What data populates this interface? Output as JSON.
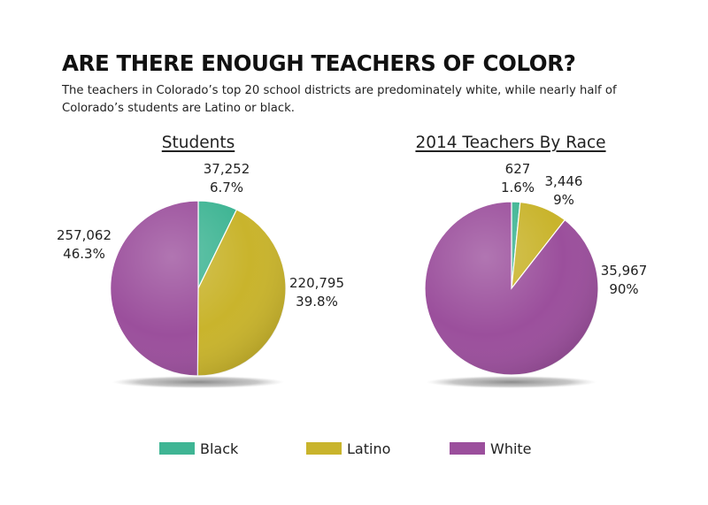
{
  "title": "ARE THERE ENOUGH TEACHERS OF COLOR?",
  "subtitle": "The teachers in Colorado’s top 20 school districts are predominately white, while nearly half of Colorado’s students are Latino or black.",
  "colors": {
    "Black": "#3fb594",
    "Latino": "#c9b42c",
    "White": "#9b4f9c"
  },
  "legend": [
    "Black",
    "Latino",
    "White"
  ],
  "chart_data": [
    {
      "type": "pie",
      "title": "Students",
      "slices": [
        {
          "category": "Black",
          "count": "37,252",
          "percent": "6.7%",
          "value": 6.7
        },
        {
          "category": "Latino",
          "count": "220,795",
          "percent": "39.8%",
          "value": 39.8
        },
        {
          "category": "White",
          "count": "257,062",
          "percent": "46.3%",
          "value": 46.3
        }
      ]
    },
    {
      "type": "pie",
      "title": "2014 Teachers By Race",
      "slices": [
        {
          "category": "Black",
          "count": "627",
          "percent": "1.6%",
          "value": 1.6
        },
        {
          "category": "Latino",
          "count": "3,446",
          "percent": "9%",
          "value": 9
        },
        {
          "category": "White",
          "count": "35,967",
          "percent": "90%",
          "value": 90
        }
      ]
    }
  ]
}
